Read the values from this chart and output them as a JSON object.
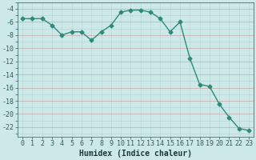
{
  "x": [
    0,
    1,
    2,
    3,
    4,
    5,
    6,
    7,
    8,
    9,
    10,
    11,
    12,
    13,
    14,
    15,
    16,
    17,
    18,
    19,
    20,
    21,
    22,
    23
  ],
  "y": [
    -5.5,
    -5.5,
    -5.5,
    -6.5,
    -8.0,
    -7.5,
    -7.5,
    -8.8,
    -7.5,
    -6.5,
    -4.5,
    -4.2,
    -4.2,
    -4.5,
    -5.5,
    -7.5,
    -6.0,
    -11.5,
    -15.5,
    -15.8,
    -18.5,
    -20.5,
    -22.2,
    -22.5
  ],
  "xlim": [
    -0.5,
    23.5
  ],
  "ylim": [
    -23.5,
    -3.0
  ],
  "yticks": [
    -4,
    -6,
    -8,
    -10,
    -12,
    -14,
    -16,
    -18,
    -20,
    -22
  ],
  "xticks": [
    0,
    1,
    2,
    3,
    4,
    5,
    6,
    7,
    8,
    9,
    10,
    11,
    12,
    13,
    14,
    15,
    16,
    17,
    18,
    19,
    20,
    21,
    22,
    23
  ],
  "xlabel": "Humidex (Indice chaleur)",
  "line_color": "#2e8b7a",
  "marker": "D",
  "marker_size": 2.5,
  "bg_color": "#cce8e8",
  "grid_color_minor": "#b8d8d8",
  "grid_color_major": "#c8a8a8",
  "tick_label_color": "#2e5e5e",
  "xlabel_color": "#1a3a3a",
  "xlabel_fontsize": 7,
  "tick_fontsize": 6
}
